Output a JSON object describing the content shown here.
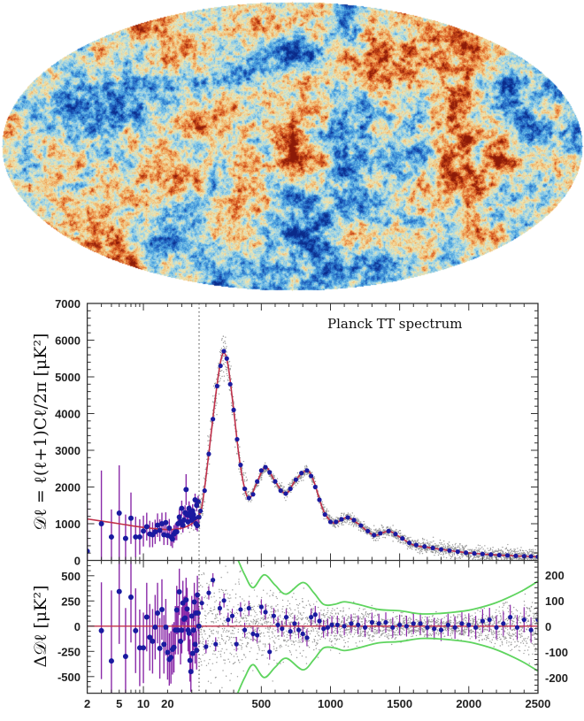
{
  "colors": {
    "theory": "#c0304a",
    "binned": "#1a1aa0",
    "errorbar": "#8a2aa8",
    "unbinned": "#9a9a9a",
    "envelope": "#5ed45e",
    "axis": "#333333",
    "map_colormap": [
      "#0a2a8a",
      "#1e5fbf",
      "#4aa3e0",
      "#9fd6ea",
      "#efe8b4",
      "#f3b266",
      "#d9571e",
      "#8c1a08"
    ]
  },
  "sky_map": {
    "projection": "mollweide",
    "icon": "cmb-temperature-map"
  },
  "chart_data": [
    {
      "type": "scatter",
      "title": "Planck TT spectrum",
      "ylabel": "𝒟ℓ = ℓ(ℓ+1)Cℓ/2π [μK²]",
      "xlabel": "",
      "x_scale": "log for ℓ<50, linear for ℓ≥50",
      "x_break": 50,
      "xlim": [
        2,
        2500
      ],
      "ylim": [
        0,
        7000
      ],
      "yticks": [
        "0",
        "1000",
        "2000",
        "3000",
        "4000",
        "5000",
        "6000",
        "7000"
      ],
      "xticks": [
        "2",
        "5",
        "10",
        "20",
        "500",
        "1000",
        "1500",
        "2000",
        "2500"
      ],
      "grid": false,
      "theory_curve": [
        [
          2,
          1130
        ],
        [
          5,
          1000
        ],
        [
          10,
          900
        ],
        [
          20,
          840
        ],
        [
          30,
          880
        ],
        [
          40,
          1000
        ],
        [
          50,
          1250
        ],
        [
          80,
          1700
        ],
        [
          120,
          2900
        ],
        [
          160,
          4200
        ],
        [
          200,
          5300
        ],
        [
          229,
          5650
        ],
        [
          260,
          5300
        ],
        [
          300,
          4100
        ],
        [
          340,
          2800
        ],
        [
          380,
          1950
        ],
        [
          415,
          1680
        ],
        [
          460,
          2050
        ],
        [
          530,
          2540
        ],
        [
          600,
          2150
        ],
        [
          677,
          1820
        ],
        [
          750,
          2200
        ],
        [
          830,
          2450
        ],
        [
          880,
          2150
        ],
        [
          950,
          1350
        ],
        [
          1022,
          1020
        ],
        [
          1075,
          1100
        ],
        [
          1125,
          1170
        ],
        [
          1200,
          1000
        ],
        [
          1315,
          690
        ],
        [
          1420,
          800
        ],
        [
          1500,
          640
        ],
        [
          1600,
          420
        ],
        [
          1700,
          360
        ],
        [
          1800,
          300
        ],
        [
          1900,
          250
        ],
        [
          2000,
          205
        ],
        [
          2100,
          175
        ],
        [
          2200,
          150
        ],
        [
          2300,
          130
        ],
        [
          2400,
          115
        ],
        [
          2500,
          100
        ]
      ],
      "binned_lowl": [
        [
          2,
          250,
          1300
        ],
        [
          3,
          1000,
          1450
        ],
        [
          4,
          640,
          750
        ],
        [
          5,
          1290,
          1300
        ],
        [
          6,
          600,
          650
        ],
        [
          7,
          1150,
          700
        ],
        [
          8,
          640,
          550
        ],
        [
          9,
          640,
          480
        ],
        [
          10,
          800,
          420
        ],
        [
          11,
          920,
          380
        ],
        [
          12,
          720,
          360
        ],
        [
          13,
          700,
          340
        ],
        [
          14,
          780,
          330
        ],
        [
          15,
          960,
          320
        ],
        [
          16,
          820,
          300
        ],
        [
          17,
          1000,
          300
        ],
        [
          18,
          700,
          280
        ],
        [
          19,
          1030,
          280
        ],
        [
          20,
          680,
          260
        ],
        [
          21,
          880,
          250
        ],
        [
          22,
          640,
          250
        ],
        [
          23,
          580,
          240
        ],
        [
          24,
          720,
          240
        ],
        [
          25,
          780,
          230
        ],
        [
          26,
          780,
          230
        ],
        [
          27,
          1000,
          220
        ],
        [
          28,
          1180,
          220
        ],
        [
          29,
          1050,
          210
        ],
        [
          30,
          1420,
          210
        ],
        [
          31,
          960,
          200
        ],
        [
          32,
          1100,
          200
        ],
        [
          33,
          1300,
          200
        ],
        [
          34,
          1930,
          420
        ],
        [
          35,
          1240,
          200
        ],
        [
          36,
          1050,
          190
        ],
        [
          37,
          1420,
          190
        ],
        [
          38,
          1310,
          190
        ],
        [
          39,
          1200,
          180
        ],
        [
          40,
          1100,
          180
        ],
        [
          41,
          1350,
          180
        ],
        [
          42,
          1250,
          170
        ],
        [
          43,
          1150,
          170
        ],
        [
          44,
          1650,
          170
        ],
        [
          45,
          1000,
          170
        ],
        [
          46,
          1500,
          160
        ],
        [
          47,
          950,
          160
        ],
        [
          48,
          1600,
          160
        ],
        [
          49,
          1180,
          160
        ]
      ],
      "binned_highl": [
        [
          60,
          1350
        ],
        [
          90,
          1900
        ],
        [
          120,
          2900
        ],
        [
          150,
          3850
        ],
        [
          180,
          4750
        ],
        [
          205,
          5300
        ],
        [
          229,
          5700
        ],
        [
          250,
          5500
        ],
        [
          275,
          4800
        ],
        [
          300,
          4100
        ],
        [
          325,
          3300
        ],
        [
          350,
          2600
        ],
        [
          380,
          1950
        ],
        [
          410,
          1700
        ],
        [
          440,
          1800
        ],
        [
          470,
          2150
        ],
        [
          500,
          2450
        ],
        [
          530,
          2540
        ],
        [
          560,
          2400
        ],
        [
          600,
          2150
        ],
        [
          640,
          1900
        ],
        [
          677,
          1820
        ],
        [
          710,
          1950
        ],
        [
          750,
          2200
        ],
        [
          790,
          2380
        ],
        [
          830,
          2450
        ],
        [
          860,
          2300
        ],
        [
          890,
          2000
        ],
        [
          920,
          1650
        ],
        [
          960,
          1250
        ],
        [
          1000,
          1050
        ],
        [
          1040,
          1050
        ],
        [
          1080,
          1120
        ],
        [
          1125,
          1170
        ],
        [
          1170,
          1100
        ],
        [
          1220,
          950
        ],
        [
          1270,
          800
        ],
        [
          1315,
          690
        ],
        [
          1360,
          740
        ],
        [
          1420,
          800
        ],
        [
          1470,
          720
        ],
        [
          1520,
          600
        ],
        [
          1570,
          480
        ],
        [
          1620,
          420
        ],
        [
          1680,
          380
        ],
        [
          1740,
          340
        ],
        [
          1800,
          300
        ],
        [
          1860,
          270
        ],
        [
          1920,
          240
        ],
        [
          1980,
          210
        ],
        [
          2040,
          190
        ],
        [
          2100,
          175
        ],
        [
          2160,
          160
        ],
        [
          2220,
          145
        ],
        [
          2280,
          135
        ],
        [
          2340,
          125
        ],
        [
          2400,
          115
        ],
        [
          2450,
          110
        ],
        [
          2500,
          100
        ]
      ]
    },
    {
      "type": "scatter",
      "ylabel": "Δ𝒟ℓ [μK²]",
      "xlabel": "",
      "xlim": [
        2,
        2500
      ],
      "ylim_left": [
        -666,
        652
      ],
      "ylim_right": [
        -261,
        256
      ],
      "yticks_left": [
        "500",
        "250",
        "0",
        "-250",
        "-500"
      ],
      "yticks_right": [
        "200",
        "100",
        "0",
        "-100",
        "-200"
      ],
      "xticks": [
        "2",
        "5",
        "10",
        "20",
        "500",
        "1000",
        "1500",
        "2000",
        "2500"
      ],
      "residuals_lowl_left_axis": [
        [
          3,
          -45,
          480
        ],
        [
          4,
          -345,
          700
        ],
        [
          5,
          344,
          520
        ],
        [
          6,
          -300,
          480
        ],
        [
          7,
          288,
          450
        ],
        [
          8,
          -45,
          420
        ],
        [
          9,
          -215,
          380
        ],
        [
          10,
          -215,
          350
        ],
        [
          11,
          90,
          340
        ],
        [
          12,
          -110,
          330
        ],
        [
          13,
          -150,
          320
        ],
        [
          14,
          -10,
          320
        ],
        [
          15,
          130,
          300
        ],
        [
          16,
          -220,
          300
        ],
        [
          17,
          165,
          300
        ],
        [
          18,
          -180,
          290
        ],
        [
          19,
          -10,
          280
        ],
        [
          20,
          -260,
          270
        ],
        [
          21,
          -330,
          260
        ],
        [
          22,
          -310,
          260
        ],
        [
          23,
          -230,
          250
        ],
        [
          24,
          -210,
          250
        ],
        [
          25,
          -40,
          240
        ],
        [
          26,
          160,
          240
        ],
        [
          27,
          -40,
          240
        ],
        [
          28,
          340,
          230
        ],
        [
          29,
          -150,
          230
        ],
        [
          30,
          -40,
          230
        ],
        [
          31,
          230,
          220
        ],
        [
          32,
          70,
          220
        ],
        [
          33,
          80,
          220
        ],
        [
          34,
          260,
          220
        ],
        [
          35,
          170,
          210
        ],
        [
          36,
          -40,
          210
        ],
        [
          37,
          -70,
          210
        ],
        [
          38,
          -340,
          210
        ],
        [
          39,
          -450,
          200
        ],
        [
          40,
          100,
          200
        ],
        [
          41,
          -270,
          200
        ],
        [
          42,
          -40,
          200
        ],
        [
          43,
          240,
          190
        ],
        [
          44,
          -180,
          190
        ],
        [
          45,
          130,
          190
        ],
        [
          46,
          -240,
          190
        ],
        [
          47,
          310,
          190
        ],
        [
          48,
          130,
          180
        ],
        [
          49,
          0,
          180
        ]
      ],
      "residuals_highl_right_axis": [
        [
          70,
          90
        ],
        [
          100,
          -80
        ],
        [
          120,
          130
        ],
        [
          150,
          180
        ],
        [
          170,
          -70
        ],
        [
          200,
          70
        ],
        [
          230,
          100
        ],
        [
          260,
          25
        ],
        [
          290,
          40
        ],
        [
          320,
          -70
        ],
        [
          350,
          65
        ],
        [
          380,
          -15
        ],
        [
          410,
          70
        ],
        [
          440,
          -30
        ],
        [
          470,
          -35
        ],
        [
          500,
          75
        ],
        [
          530,
          55
        ],
        [
          560,
          -100
        ],
        [
          590,
          40
        ],
        [
          620,
          5
        ],
        [
          650,
          -10
        ],
        [
          680,
          35
        ],
        [
          710,
          -20
        ],
        [
          740,
          10
        ],
        [
          770,
          -15
        ],
        [
          800,
          -30
        ],
        [
          830,
          -45
        ],
        [
          860,
          35
        ],
        [
          890,
          45
        ],
        [
          920,
          20
        ],
        [
          950,
          -10
        ],
        [
          980,
          -5
        ],
        [
          1010,
          5
        ],
        [
          1050,
          5
        ],
        [
          1100,
          0
        ],
        [
          1150,
          10
        ],
        [
          1200,
          5
        ],
        [
          1250,
          -5
        ],
        [
          1300,
          15
        ],
        [
          1350,
          10
        ],
        [
          1400,
          15
        ],
        [
          1450,
          -5
        ],
        [
          1500,
          5
        ],
        [
          1550,
          0
        ],
        [
          1600,
          10
        ],
        [
          1650,
          10
        ],
        [
          1700,
          -5
        ],
        [
          1750,
          -10
        ],
        [
          1800,
          -15
        ],
        [
          1850,
          5
        ],
        [
          1900,
          -5
        ],
        [
          1950,
          10
        ],
        [
          2000,
          5
        ],
        [
          2050,
          -5
        ],
        [
          2100,
          20
        ],
        [
          2150,
          25
        ],
        [
          2200,
          -5
        ],
        [
          2250,
          10
        ],
        [
          2300,
          35
        ],
        [
          2350,
          -5
        ],
        [
          2400,
          25
        ],
        [
          2450,
          -15
        ],
        [
          2500,
          25
        ]
      ],
      "envelope_right_axis": [
        [
          330,
          260
        ],
        [
          380,
          200
        ],
        [
          440,
          150
        ],
        [
          520,
          200
        ],
        [
          600,
          160
        ],
        [
          680,
          125
        ],
        [
          800,
          170
        ],
        [
          880,
          130
        ],
        [
          950,
          85
        ],
        [
          1030,
          85
        ],
        [
          1100,
          95
        ],
        [
          1200,
          85
        ],
        [
          1350,
          65
        ],
        [
          1500,
          60
        ],
        [
          1650,
          48
        ],
        [
          1800,
          50
        ],
        [
          1900,
          55
        ],
        [
          2000,
          62
        ],
        [
          2100,
          75
        ],
        [
          2200,
          92
        ],
        [
          2300,
          115
        ],
        [
          2400,
          142
        ],
        [
          2500,
          175
        ]
      ]
    }
  ]
}
